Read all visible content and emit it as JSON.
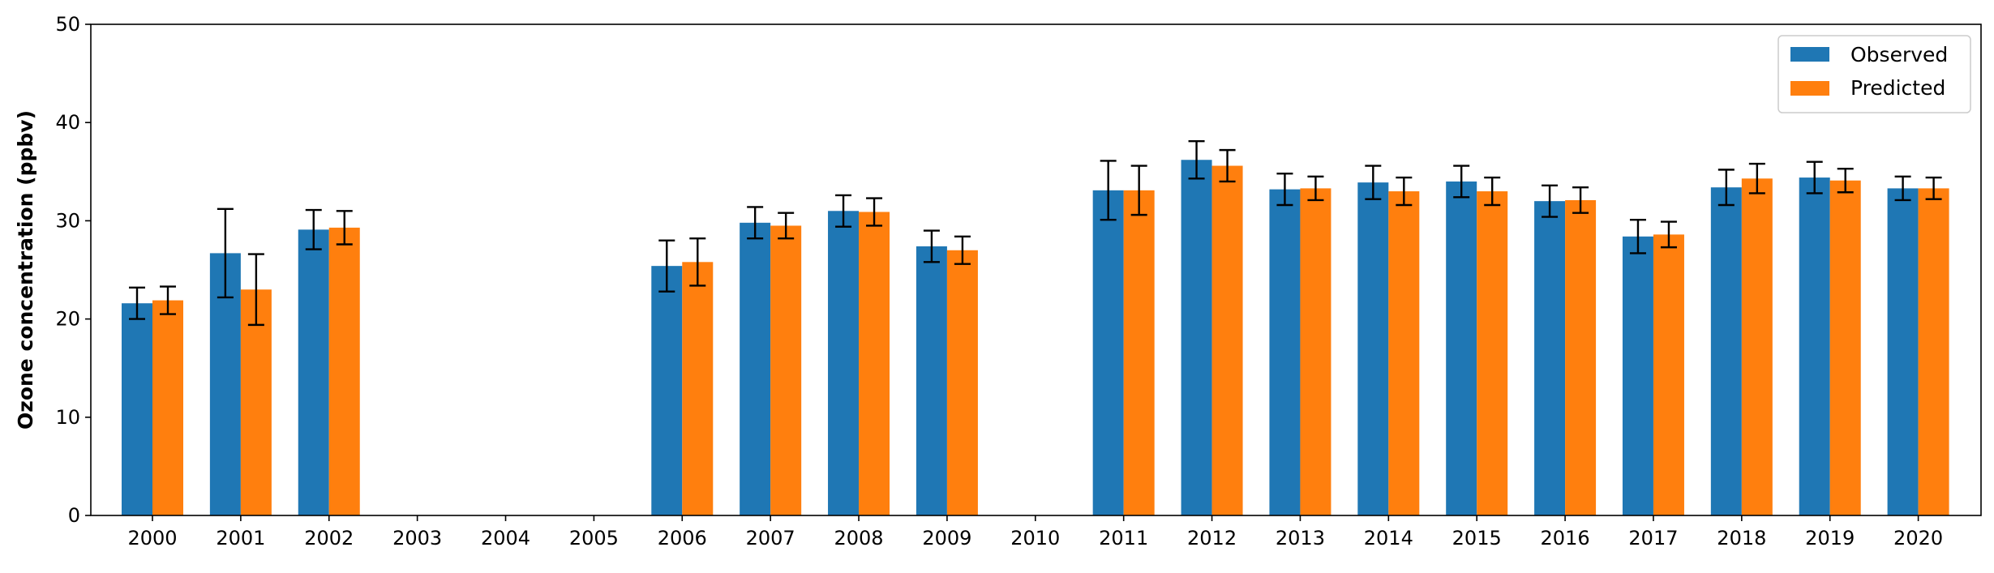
{
  "chart_data": {
    "type": "bar",
    "title": "",
    "xlabel": "",
    "ylabel": "Ozone concentration (ppbv)",
    "ylim": [
      0,
      50
    ],
    "yticks": [
      0,
      10,
      20,
      30,
      40,
      50
    ],
    "grid": false,
    "legend_position": "top-right",
    "categories": [
      "2000",
      "2001",
      "2002",
      "2003",
      "2004",
      "2005",
      "2006",
      "2007",
      "2008",
      "2009",
      "2010",
      "2011",
      "2012",
      "2013",
      "2014",
      "2015",
      "2016",
      "2017",
      "2018",
      "2019",
      "2020"
    ],
    "series": [
      {
        "name": "Observed",
        "color": "#1f77b4",
        "values": [
          21.6,
          26.7,
          29.1,
          null,
          null,
          null,
          25.4,
          29.8,
          31.0,
          27.4,
          null,
          33.1,
          36.2,
          33.2,
          33.9,
          34.0,
          32.0,
          28.4,
          33.4,
          34.4,
          33.3
        ],
        "error": [
          1.6,
          4.5,
          2.0,
          null,
          null,
          null,
          2.6,
          1.6,
          1.6,
          1.6,
          null,
          3.0,
          1.9,
          1.6,
          1.7,
          1.6,
          1.6,
          1.7,
          1.8,
          1.6,
          1.2
        ]
      },
      {
        "name": "Predicted",
        "color": "#ff7f0e",
        "values": [
          21.9,
          23.0,
          29.3,
          null,
          null,
          null,
          25.8,
          29.5,
          30.9,
          27.0,
          null,
          33.1,
          35.6,
          33.3,
          33.0,
          33.0,
          32.1,
          28.6,
          34.3,
          34.1,
          33.3
        ],
        "error": [
          1.4,
          3.6,
          1.7,
          null,
          null,
          null,
          2.4,
          1.3,
          1.4,
          1.4,
          null,
          2.5,
          1.6,
          1.2,
          1.4,
          1.4,
          1.3,
          1.3,
          1.5,
          1.2,
          1.1
        ]
      }
    ]
  }
}
